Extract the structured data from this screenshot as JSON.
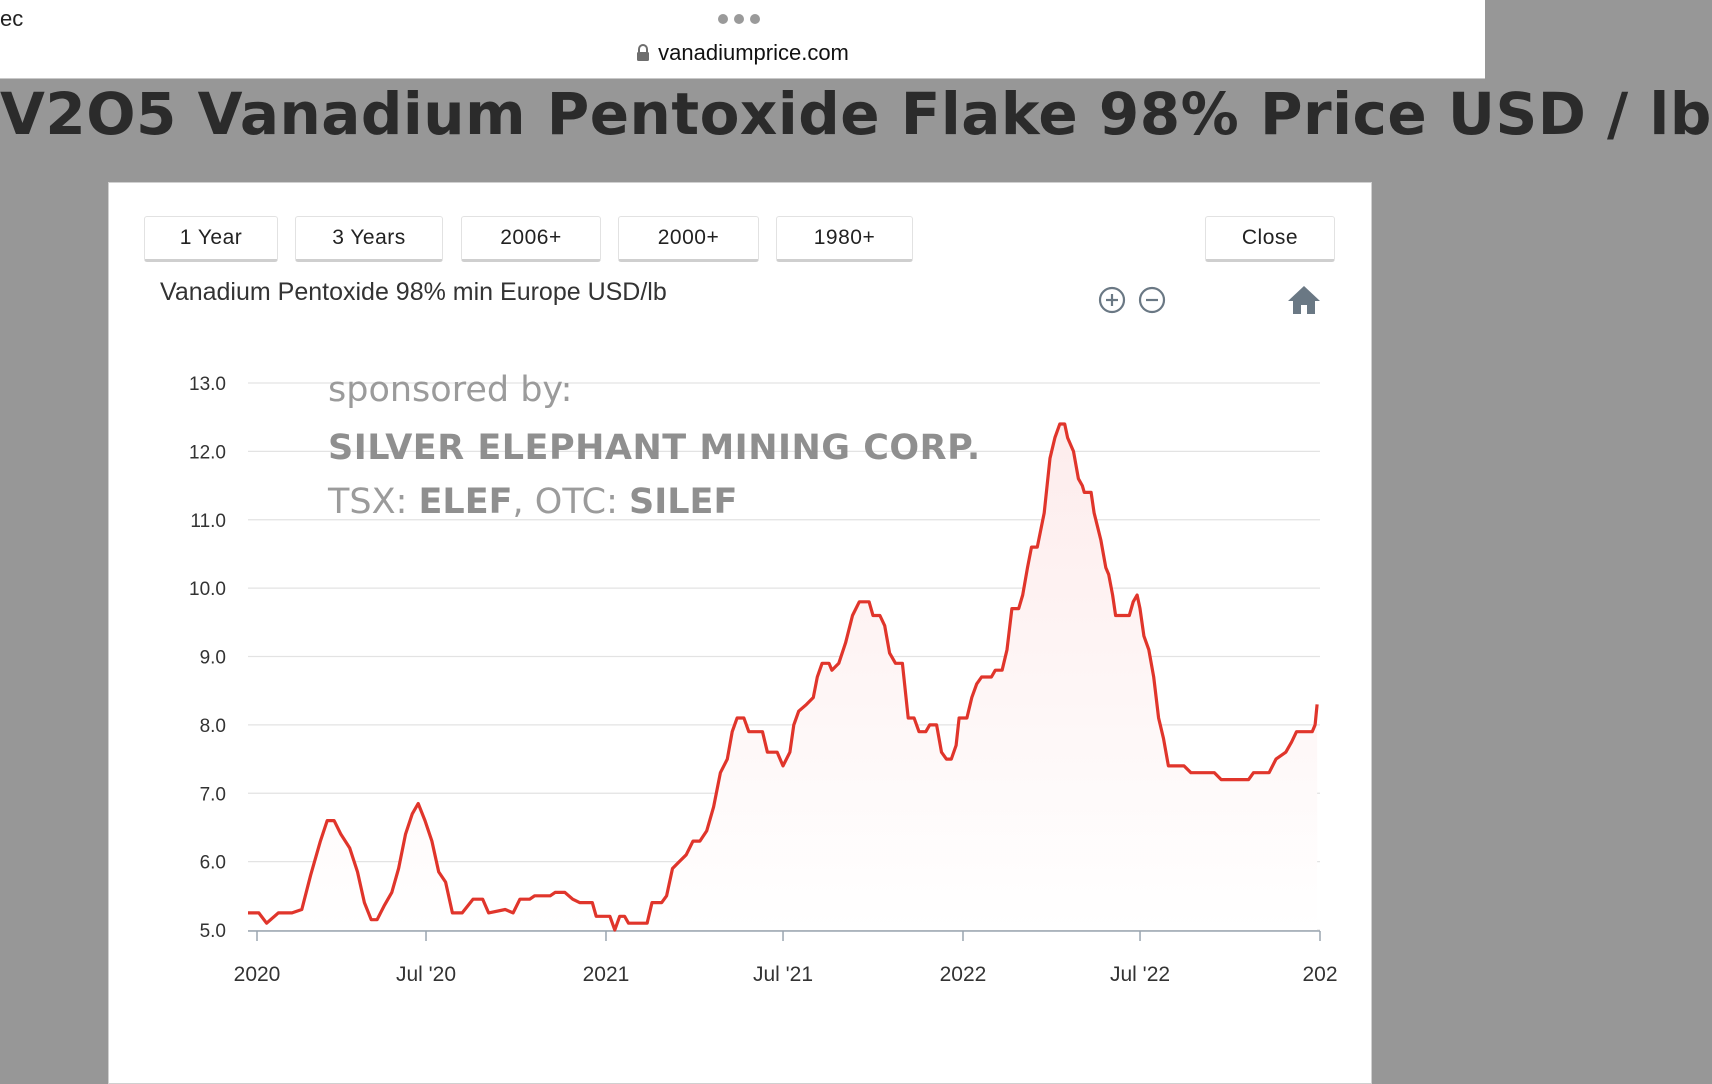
{
  "browser": {
    "tab_fragment": "ec",
    "url": "vanadiumprice.com"
  },
  "page": {
    "title": "V2O5 Vanadium Pentoxide Flake 98% Price USD / lb"
  },
  "range_buttons": [
    "1 Year",
    "3 Years",
    "2006+",
    "2000+",
    "1980+"
  ],
  "close_label": "Close",
  "icons": {
    "zoom_in": "zoom-in-icon",
    "zoom_out": "zoom-out-icon",
    "home": "home-icon",
    "lock": "lock-icon"
  },
  "sponsor": {
    "line1": "sponsored by:",
    "line2": "SILVER ELEPHANT MINING CORP.",
    "line3_prefix": "TSX: ",
    "line3_t1": "ELEF",
    "line3_mid": ", OTC: ",
    "line3_t2": "SILEF"
  },
  "colors": {
    "line": "#e0352b",
    "fill": "#fdecec",
    "grid": "#e3e3e3",
    "background": "#979797"
  },
  "chart_data": {
    "type": "area",
    "title": "Vanadium Pentoxide 98% min Europe USD/lb",
    "xlabel": "",
    "ylabel": "",
    "ylim": [
      5.0,
      13.0
    ],
    "yticks": [
      "13.0",
      "12.0",
      "11.0",
      "10.0",
      "9.0",
      "8.0",
      "7.0",
      "6.0",
      "5.0"
    ],
    "xticks": [
      "2020",
      "Jul '20",
      "2021",
      "Jul '21",
      "2022",
      "Jul '22",
      "202"
    ],
    "grid": true,
    "legend": "none",
    "series": [
      {
        "values": [
          [
            "2020-01-01",
            5.25
          ],
          [
            "2020-01-12",
            5.25
          ],
          [
            "2020-01-20",
            5.1
          ],
          [
            "2020-02-01",
            5.25
          ],
          [
            "2020-02-15",
            5.25
          ],
          [
            "2020-02-25",
            5.3
          ],
          [
            "2020-03-05",
            5.8
          ],
          [
            "2020-03-15",
            6.3
          ],
          [
            "2020-03-22",
            6.6
          ],
          [
            "2020-03-29",
            6.6
          ],
          [
            "2020-04-05",
            6.4
          ],
          [
            "2020-04-14",
            6.2
          ],
          [
            "2020-04-22",
            5.85
          ],
          [
            "2020-04-29",
            5.4
          ],
          [
            "2020-05-06",
            5.15
          ],
          [
            "2020-05-12",
            5.15
          ],
          [
            "2020-05-19",
            5.35
          ],
          [
            "2020-05-27",
            5.55
          ],
          [
            "2020-06-03",
            5.9
          ],
          [
            "2020-06-10",
            6.4
          ],
          [
            "2020-06-17",
            6.7
          ],
          [
            "2020-06-23",
            6.85
          ],
          [
            "2020-06-30",
            6.6
          ],
          [
            "2020-07-07",
            6.3
          ],
          [
            "2020-07-14",
            5.85
          ],
          [
            "2020-07-21",
            5.7
          ],
          [
            "2020-07-28",
            5.25
          ],
          [
            "2020-08-07",
            5.25
          ],
          [
            "2020-08-18",
            5.45
          ],
          [
            "2020-08-28",
            5.45
          ],
          [
            "2020-09-03",
            5.25
          ],
          [
            "2020-09-20",
            5.3
          ],
          [
            "2020-09-28",
            5.25
          ],
          [
            "2020-10-05",
            5.45
          ],
          [
            "2020-10-15",
            5.45
          ],
          [
            "2020-10-20",
            5.5
          ],
          [
            "2020-11-05",
            5.5
          ],
          [
            "2020-11-10",
            5.55
          ],
          [
            "2020-11-20",
            5.55
          ],
          [
            "2020-11-28",
            5.45
          ],
          [
            "2020-12-05",
            5.4
          ],
          [
            "2020-12-18",
            5.4
          ],
          [
            "2020-12-22",
            5.2
          ],
          [
            "2020-12-29",
            5.2
          ],
          [
            "2021-01-05",
            5.2
          ],
          [
            "2021-01-10",
            5.0
          ],
          [
            "2021-01-15",
            5.2
          ],
          [
            "2021-01-20",
            5.2
          ],
          [
            "2021-01-24",
            5.1
          ],
          [
            "2021-02-05",
            5.1
          ],
          [
            "2021-02-12",
            5.1
          ],
          [
            "2021-02-17",
            5.4
          ],
          [
            "2021-02-27",
            5.4
          ],
          [
            "2021-03-04",
            5.5
          ],
          [
            "2021-03-10",
            5.9
          ],
          [
            "2021-03-17",
            6.0
          ],
          [
            "2021-03-24",
            6.1
          ],
          [
            "2021-03-31",
            6.3
          ],
          [
            "2021-04-07",
            6.3
          ],
          [
            "2021-04-14",
            6.45
          ],
          [
            "2021-04-21",
            6.8
          ],
          [
            "2021-04-28",
            7.3
          ],
          [
            "2021-05-05",
            7.5
          ],
          [
            "2021-05-10",
            7.9
          ],
          [
            "2021-05-15",
            8.1
          ],
          [
            "2021-05-22",
            8.1
          ],
          [
            "2021-05-27",
            7.9
          ],
          [
            "2021-06-10",
            7.9
          ],
          [
            "2021-06-15",
            7.6
          ],
          [
            "2021-06-25",
            7.6
          ],
          [
            "2021-07-01",
            7.4
          ],
          [
            "2021-07-08",
            7.6
          ],
          [
            "2021-07-12",
            8.0
          ],
          [
            "2021-07-17",
            8.2
          ],
          [
            "2021-07-25",
            8.3
          ],
          [
            "2021-08-01",
            8.4
          ],
          [
            "2021-08-05",
            8.7
          ],
          [
            "2021-08-10",
            8.9
          ],
          [
            "2021-08-17",
            8.9
          ],
          [
            "2021-08-20",
            8.8
          ],
          [
            "2021-08-27",
            8.9
          ],
          [
            "2021-09-03",
            9.2
          ],
          [
            "2021-09-10",
            9.6
          ],
          [
            "2021-09-17",
            9.8
          ],
          [
            "2021-09-27",
            9.8
          ],
          [
            "2021-10-01",
            9.6
          ],
          [
            "2021-10-08",
            9.6
          ],
          [
            "2021-10-13",
            9.45
          ],
          [
            "2021-10-18",
            9.05
          ],
          [
            "2021-10-24",
            8.9
          ],
          [
            "2021-10-31",
            8.9
          ],
          [
            "2021-11-06",
            8.1
          ],
          [
            "2021-11-12",
            8.1
          ],
          [
            "2021-11-17",
            7.9
          ],
          [
            "2021-11-24",
            7.9
          ],
          [
            "2021-11-28",
            8.0
          ],
          [
            "2021-12-05",
            8.0
          ],
          [
            "2021-12-10",
            7.6
          ],
          [
            "2021-12-15",
            7.5
          ],
          [
            "2021-12-20",
            7.5
          ],
          [
            "2021-12-25",
            7.7
          ],
          [
            "2021-12-28",
            8.1
          ],
          [
            "2022-01-05",
            8.1
          ],
          [
            "2022-01-10",
            8.4
          ],
          [
            "2022-01-15",
            8.6
          ],
          [
            "2022-01-20",
            8.7
          ],
          [
            "2022-01-30",
            8.7
          ],
          [
            "2022-02-03",
            8.8
          ],
          [
            "2022-02-10",
            8.8
          ],
          [
            "2022-02-15",
            9.1
          ],
          [
            "2022-02-20",
            9.7
          ],
          [
            "2022-02-27",
            9.7
          ],
          [
            "2022-03-03",
            9.9
          ],
          [
            "2022-03-08",
            10.3
          ],
          [
            "2022-03-12",
            10.6
          ],
          [
            "2022-03-18",
            10.6
          ],
          [
            "2022-03-25",
            11.1
          ],
          [
            "2022-03-31",
            11.9
          ],
          [
            "2022-04-05",
            12.2
          ],
          [
            "2022-04-10",
            12.4
          ],
          [
            "2022-04-15",
            12.4
          ],
          [
            "2022-04-18",
            12.2
          ],
          [
            "2022-04-24",
            12.0
          ],
          [
            "2022-04-29",
            11.6
          ],
          [
            "2022-05-03",
            11.5
          ],
          [
            "2022-05-05",
            11.4
          ],
          [
            "2022-05-12",
            11.4
          ],
          [
            "2022-05-15",
            11.1
          ],
          [
            "2022-05-22",
            10.7
          ],
          [
            "2022-05-27",
            10.3
          ],
          [
            "2022-05-30",
            10.2
          ],
          [
            "2022-06-03",
            9.9
          ],
          [
            "2022-06-06",
            9.6
          ],
          [
            "2022-06-15",
            9.6
          ],
          [
            "2022-06-20",
            9.6
          ],
          [
            "2022-06-24",
            9.8
          ],
          [
            "2022-06-28",
            9.9
          ],
          [
            "2022-07-01",
            9.7
          ],
          [
            "2022-07-05",
            9.3
          ],
          [
            "2022-07-10",
            9.1
          ],
          [
            "2022-07-15",
            8.7
          ],
          [
            "2022-07-20",
            8.1
          ],
          [
            "2022-07-25",
            7.8
          ],
          [
            "2022-07-30",
            7.4
          ],
          [
            "2022-08-15",
            7.4
          ],
          [
            "2022-08-22",
            7.3
          ],
          [
            "2022-09-15",
            7.3
          ],
          [
            "2022-09-22",
            7.2
          ],
          [
            "2022-10-20",
            7.2
          ],
          [
            "2022-10-25",
            7.3
          ],
          [
            "2022-11-10",
            7.3
          ],
          [
            "2022-11-17",
            7.5
          ],
          [
            "2022-11-27",
            7.6
          ],
          [
            "2022-12-03",
            7.75
          ],
          [
            "2022-12-08",
            7.9
          ],
          [
            "2022-12-15",
            7.9
          ],
          [
            "2022-12-24",
            7.9
          ],
          [
            "2022-12-27",
            8.0
          ],
          [
            "2022-12-29",
            8.3
          ]
        ]
      }
    ]
  }
}
